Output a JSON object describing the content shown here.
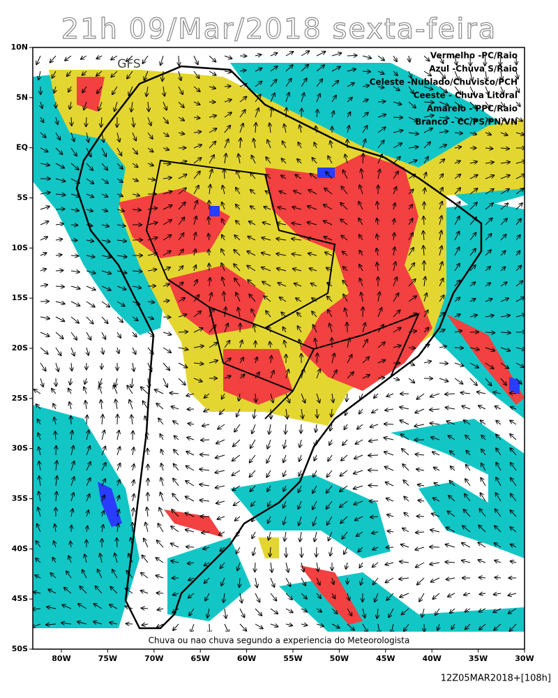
{
  "title": "21h 09/Mar/2018 sexta-feira",
  "model": "GFS",
  "legend": [
    "Vermelho -PC/Raio",
    "Azul -Chuva S/Raio",
    "Celeste -Nublado/Chuvisco/PCH",
    "Ceeste - Chuva Litoral",
    "Amarelo - PPC/Raio",
    "Branco - CC/PS/PN/VN"
  ],
  "caption": "Chuva ou nao chuva segundo a experiencia do Meteorologista",
  "run": "12Z05MAR2018+[108h]",
  "lat_ticks": [
    {
      "value": 10,
      "label": "10N"
    },
    {
      "value": 5,
      "label": "5N"
    },
    {
      "value": 0,
      "label": "EQ"
    },
    {
      "value": -5,
      "label": "5S"
    },
    {
      "value": -10,
      "label": "10S"
    },
    {
      "value": -15,
      "label": "15S"
    },
    {
      "value": -20,
      "label": "20S"
    },
    {
      "value": -25,
      "label": "25S"
    },
    {
      "value": -30,
      "label": "30S"
    },
    {
      "value": -35,
      "label": "35S"
    },
    {
      "value": -40,
      "label": "40S"
    },
    {
      "value": -45,
      "label": "45S"
    },
    {
      "value": -50,
      "label": "50S"
    }
  ],
  "lon_ticks": [
    {
      "value": -80,
      "label": "80W"
    },
    {
      "value": -75,
      "label": "75W"
    },
    {
      "value": -70,
      "label": "70W"
    },
    {
      "value": -65,
      "label": "65W"
    },
    {
      "value": -60,
      "label": "60W"
    },
    {
      "value": -55,
      "label": "55W"
    },
    {
      "value": -50,
      "label": "50W"
    },
    {
      "value": -45,
      "label": "45W"
    },
    {
      "value": -40,
      "label": "40W"
    },
    {
      "value": -35,
      "label": "35W"
    },
    {
      "value": -30,
      "label": "30W"
    }
  ]
}
